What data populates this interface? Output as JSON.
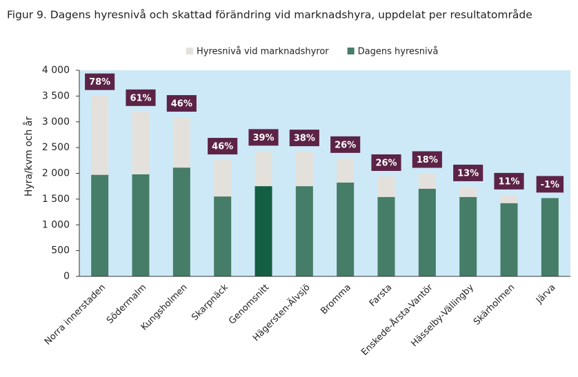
{
  "chart_data": {
    "type": "overlay-bar",
    "title": "Figur 9. Dagens hyresnivå och skattad förändring vid marknadshyra, uppdelat per resultatområde",
    "y_label": "Hyra/kvm och år",
    "categories": [
      "Norra innerstaden",
      "Södermalm",
      "Kungsholmen",
      "Skarpnäck",
      "Genomsnitt",
      "Hägersten-Älvsjö",
      "Bromma",
      "Farsta",
      "Enskede-Årsta-Vantör",
      "Hässelby-Vällingby",
      "Skärholmen",
      "Järva"
    ],
    "series": [
      {
        "name": "Hyresnivå vid marknadshyror",
        "color": "#e4e1dc",
        "values": [
          3510,
          3200,
          3090,
          2260,
          2430,
          2420,
          2290,
          1940,
          2000,
          1740,
          1580,
          1505
        ]
      },
      {
        "name": "Dagens hyresnivå",
        "color": "#457d68",
        "highlight_color": "#145e43",
        "highlight_category": "Genomsnitt",
        "values": [
          1970,
          1980,
          2110,
          1550,
          1750,
          1750,
          1820,
          1540,
          1700,
          1540,
          1420,
          1520
        ]
      }
    ],
    "change_labels": [
      "78%",
      "61%",
      "46%",
      "46%",
      "39%",
      "38%",
      "26%",
      "26%",
      "18%",
      "13%",
      "11%",
      "-1%"
    ],
    "change_label_color": "#5c2346",
    "plot_background": "#cde9f7",
    "ylim": [
      0,
      4000
    ],
    "yticks": [
      0,
      500,
      {
        "value": 1000,
        "label": "1 000"
      },
      {
        "value": 1500,
        "label": "1 500"
      },
      {
        "value": 2000,
        "label": "2 000"
      },
      {
        "value": 2500,
        "label": "2 500"
      },
      {
        "value": 3000,
        "label": "3 000"
      },
      {
        "value": 3500,
        "label": "3 500"
      },
      {
        "value": 4000,
        "label": "4 000"
      }
    ],
    "legend": "top"
  }
}
